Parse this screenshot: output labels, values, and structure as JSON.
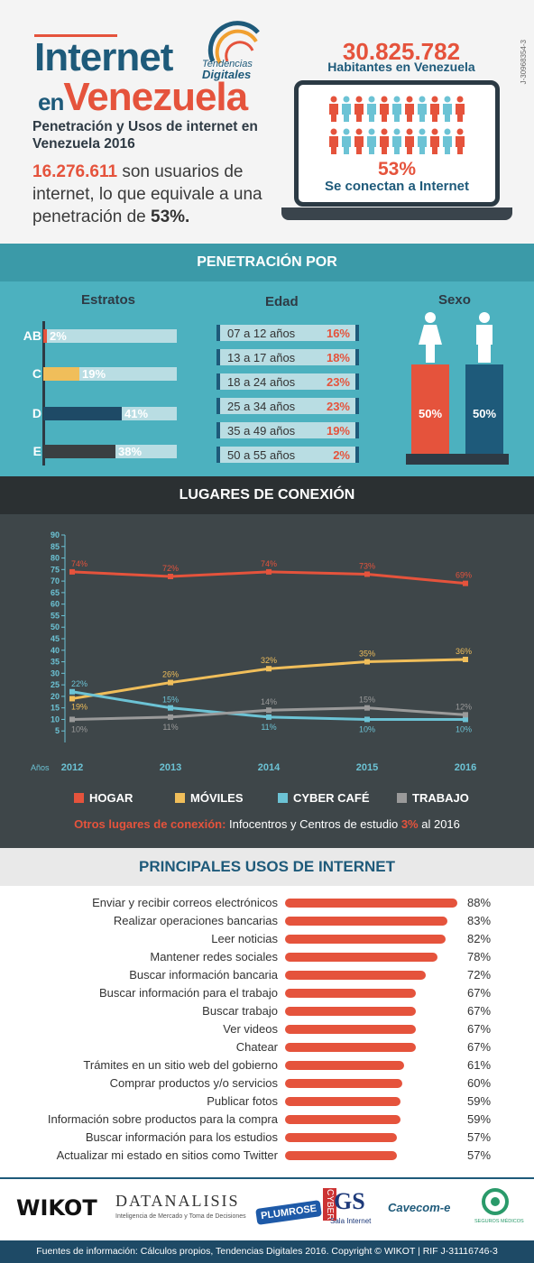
{
  "header": {
    "brand_line1": "Internet",
    "brand_line2_small": "en",
    "brand_line2": "Venezuela",
    "logo_text1": "Tendencias",
    "logo_text2": "Digitales",
    "subtitle": "Penetración y Usos de internet en Venezuela 2016",
    "users_number": "16.276.611",
    "users_text": " son usuarios de internet, lo que equivale a una penetración de ",
    "users_pct": "53%.",
    "population": "30.825.782",
    "population_label": "Habitantes en Venezuela",
    "connect_pct": "53%",
    "connect_label": "Se conectan a Internet",
    "code": "J-30968354-3"
  },
  "penetracion": {
    "title": "PENETRACIÓN POR",
    "estratos_title": "Estratos",
    "edad_title": "Edad",
    "sexo_title": "Sexo",
    "estratos": [
      {
        "label": "AB",
        "value": "2%",
        "pct": 2,
        "color": "#e5533c"
      },
      {
        "label": "C",
        "value": "19%",
        "pct": 19,
        "color": "#f0be5a"
      },
      {
        "label": "D",
        "value": "41%",
        "pct": 41,
        "color": "#1e4a66"
      },
      {
        "label": "E",
        "value": "38%",
        "pct": 38,
        "color": "#3a3f42"
      }
    ],
    "edad": [
      {
        "range": "07 a 12 años",
        "value": "16%"
      },
      {
        "range": "13 a 17 años",
        "value": "18%"
      },
      {
        "range": "18 a 24 años",
        "value": "23%"
      },
      {
        "range": "25 a 34 años",
        "value": "23%"
      },
      {
        "range": "35 a 49 años",
        "value": "19%"
      },
      {
        "range": "50 a 55 años",
        "value": "2%"
      }
    ],
    "sexo": {
      "female": "50%",
      "male": "50%"
    }
  },
  "lugares": {
    "title": "LUGARES DE CONEXIÓN",
    "otros_label": "Otros lugares de conexión:",
    "otros_text": " Infocentros y Centros de estudio ",
    "otros_pct": "3%",
    "otros_tail": " al 2016"
  },
  "chart_data": {
    "type": "line",
    "x": [
      "2012",
      "2013",
      "2014",
      "2015",
      "2016"
    ],
    "xlabel": "Años",
    "ylim": [
      0,
      90
    ],
    "yticks": [
      5,
      10,
      15,
      20,
      25,
      30,
      35,
      40,
      45,
      50,
      55,
      60,
      65,
      70,
      75,
      80,
      85,
      90
    ],
    "legend": "bottom",
    "series": [
      {
        "name": "HOGAR",
        "color": "#e5533c",
        "values": [
          74,
          72,
          74,
          73,
          69
        ]
      },
      {
        "name": "MÓVILES",
        "color": "#f0be5a",
        "values": [
          19,
          26,
          32,
          35,
          36
        ]
      },
      {
        "name": "CYBER CAFÉ",
        "color": "#6cc3d5",
        "values": [
          22,
          15,
          11,
          10,
          10
        ]
      },
      {
        "name": "TRABAJO",
        "color": "#9a9a9a",
        "values": [
          10,
          11,
          14,
          15,
          12
        ]
      }
    ]
  },
  "usos": {
    "title": "PRINCIPALES USOS DE INTERNET",
    "items": [
      {
        "label": "Enviar y recibir correos electrónicos",
        "value": "88%",
        "pct": 88
      },
      {
        "label": "Realizar operaciones bancarias",
        "value": "83%",
        "pct": 83
      },
      {
        "label": "Leer noticias",
        "value": "82%",
        "pct": 82
      },
      {
        "label": "Mantener redes sociales",
        "value": "78%",
        "pct": 78
      },
      {
        "label": "Buscar información bancaria",
        "value": "72%",
        "pct": 72
      },
      {
        "label": "Buscar información para el trabajo",
        "value": "67%",
        "pct": 67
      },
      {
        "label": "Buscar trabajo",
        "value": "67%",
        "pct": 67
      },
      {
        "label": "Ver videos",
        "value": "67%",
        "pct": 67
      },
      {
        "label": "Chatear",
        "value": "67%",
        "pct": 67
      },
      {
        "label": "Trámites en un sitio web del gobierno",
        "value": "61%",
        "pct": 61
      },
      {
        "label": "Comprar productos y/o servicios",
        "value": "60%",
        "pct": 60
      },
      {
        "label": "Publicar fotos",
        "value": "59%",
        "pct": 59
      },
      {
        "label": "Información sobre productos para la compra",
        "value": "59%",
        "pct": 59
      },
      {
        "label": "Buscar información para los estudios",
        "value": "57%",
        "pct": 57
      },
      {
        "label": "Actualizar mi estado en sitios como Twitter",
        "value": "57%",
        "pct": 57
      }
    ]
  },
  "logos": {
    "wikot": "WIKOT",
    "datanalisis": "DATANALISIS",
    "datanalisis_sub": "Inteligencia de Mercado y Toma de Decisiones",
    "plumrose": "PLUMROSE",
    "gs": "GS",
    "gs_sub": "Sala Internet",
    "cyber": "CYBER",
    "cavecom": "Cavecom-e",
    "seguros": "SEGUROS MÉDICOS"
  },
  "footer": "Fuentes de información: Cálculos propios, Tendencias Digitales 2016. Copyright © WIKOT | RIF J-31116746-3"
}
